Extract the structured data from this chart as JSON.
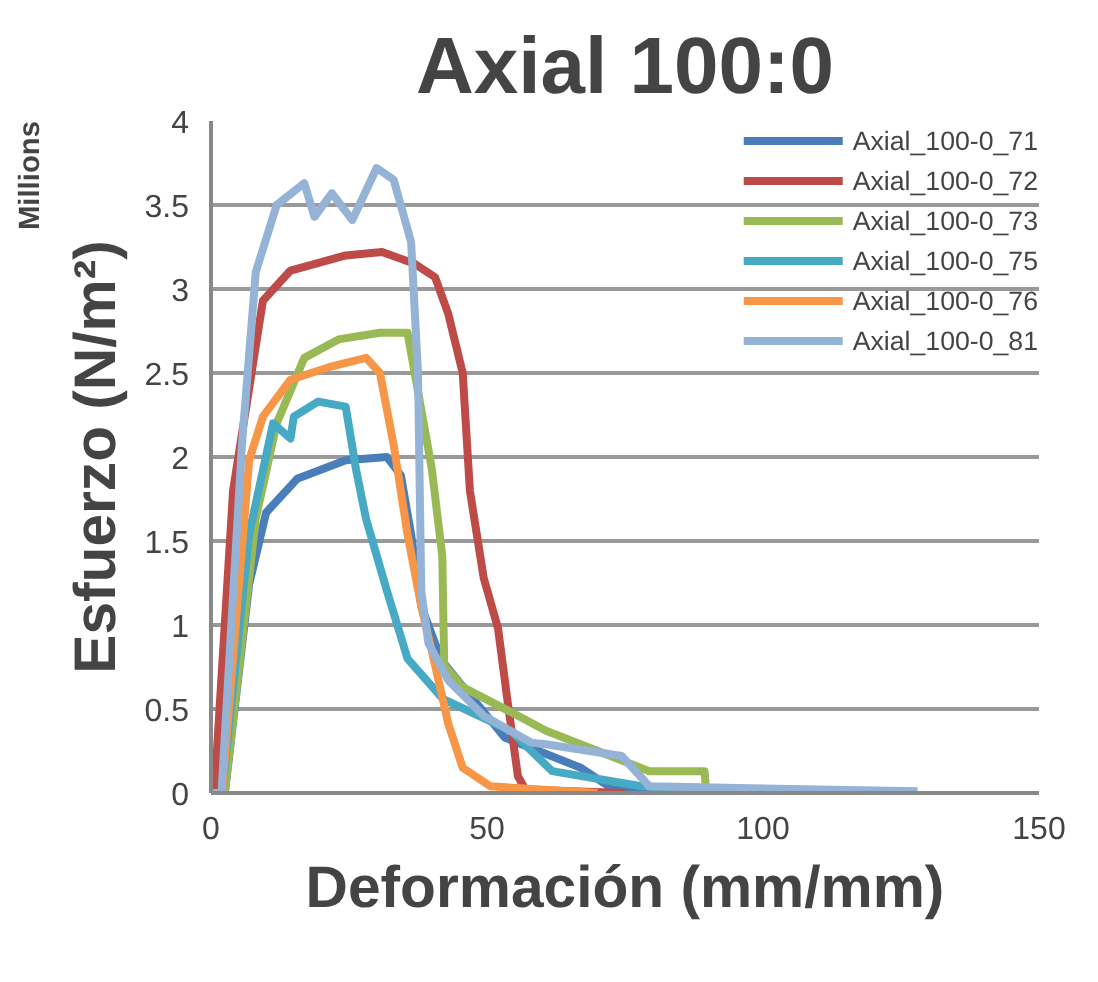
{
  "chart_data": {
    "type": "line",
    "title": "Axial 100:0",
    "xlabel": "Deformación (mm/mm)",
    "ylabel": "Esfuerzo (N/m²)",
    "annotations": [
      "Millions"
    ],
    "xlim": [
      0,
      150
    ],
    "xticks": [
      0,
      50,
      100,
      150
    ],
    "ylim": [
      0,
      4
    ],
    "yticks": [
      0,
      0.5,
      1,
      1.5,
      2,
      2.5,
      3,
      3.5,
      4
    ],
    "grid": "y",
    "legend": "top right",
    "line_style": "solid",
    "marker": "none",
    "series": [
      {
        "name": "Axial_100-0_71",
        "color": "#4a7ebb",
        "x": [
          0,
          2.5,
          6.9,
          10,
          15.6,
          24.4,
          31.9,
          34.4,
          36.25,
          38.1,
          40.6,
          42,
          53.2,
          67,
          73,
          100
        ],
        "values": [
          0,
          0,
          1.24,
          1.67,
          1.87,
          1.98,
          2.0,
          1.89,
          1.54,
          1.11,
          0.89,
          0.78,
          0.33,
          0.15,
          0.02,
          0
        ]
      },
      {
        "name": "Axial_100-0_72",
        "color": "#be4b48",
        "x": [
          0,
          0.6,
          4,
          9.4,
          14.4,
          24.4,
          31,
          36.9,
          40.6,
          43,
          45.6,
          46.9,
          49.4,
          52,
          53.75,
          55.6,
          57,
          75
        ],
        "values": [
          0,
          0,
          1.8,
          2.93,
          3.11,
          3.2,
          3.22,
          3.15,
          3.07,
          2.85,
          2.5,
          1.8,
          1.28,
          0.98,
          0.54,
          0.1,
          0.02,
          0
        ]
      },
      {
        "name": "Axial_100-0_73",
        "color": "#98b954",
        "x": [
          0,
          2.5,
          8.1,
          11.9,
          16.9,
          23.1,
          30.6,
          35.6,
          36.9,
          40,
          41.9,
          42.25,
          45.6,
          55.6,
          60.7,
          79.4,
          89.4,
          89.7,
          100
        ],
        "values": [
          0,
          0,
          1.63,
          2.2,
          2.59,
          2.7,
          2.74,
          2.74,
          2.5,
          1.93,
          1.41,
          0.76,
          0.63,
          0.46,
          0.37,
          0.13,
          0.13,
          0.02,
          0
        ]
      },
      {
        "name": "Axial_100-0_75",
        "color": "#46aac5",
        "x": [
          0,
          2,
          6.9,
          11.25,
          14.4,
          15,
          19.4,
          24.4,
          26.25,
          28.1,
          31.9,
          35.6,
          42,
          54.3,
          61.8,
          78,
          95
        ],
        "values": [
          0,
          0,
          1.54,
          2.2,
          2.11,
          2.24,
          2.33,
          2.3,
          1.93,
          1.63,
          1.2,
          0.8,
          0.56,
          0.37,
          0.13,
          0.04,
          0.01
        ]
      },
      {
        "name": "Axial_100-0_76",
        "color": "#f79646",
        "x": [
          0,
          2,
          6.9,
          9.4,
          14.4,
          21.9,
          28.1,
          30.6,
          33.1,
          35.6,
          38.1,
          40.6,
          43,
          45.6,
          50.6,
          70
        ],
        "values": [
          0,
          0,
          1.98,
          2.24,
          2.46,
          2.54,
          2.59,
          2.5,
          2.07,
          1.54,
          1.11,
          0.76,
          0.41,
          0.15,
          0.04,
          0
        ]
      },
      {
        "name": "Axial_100-0_81",
        "color": "#95b3d7",
        "x": [
          0,
          1.9,
          5.6,
          8.1,
          11.9,
          16.9,
          18.75,
          21.9,
          25.6,
          30,
          33.1,
          36.25,
          37.5,
          38.1,
          39.4,
          43,
          49.4,
          58,
          60.7,
          74.4,
          79.4,
          128
        ],
        "values": [
          0,
          0,
          2.07,
          3.1,
          3.5,
          3.63,
          3.43,
          3.57,
          3.41,
          3.72,
          3.65,
          3.28,
          2.5,
          1.2,
          0.89,
          0.67,
          0.46,
          0.3,
          0.29,
          0.22,
          0.04,
          0.01
        ]
      }
    ]
  }
}
